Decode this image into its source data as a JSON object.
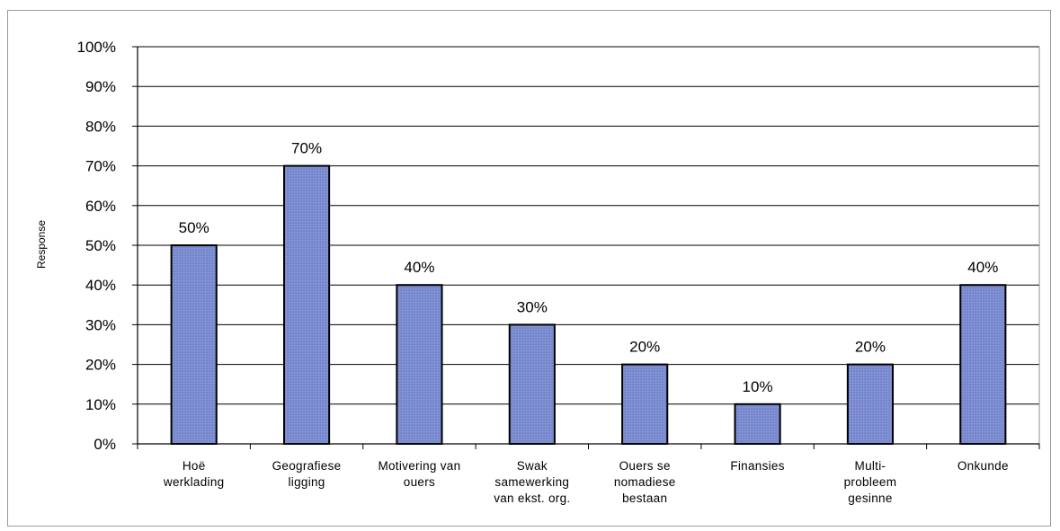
{
  "chart_data": {
    "type": "bar",
    "categories": [
      [
        "Hoë",
        "werklading"
      ],
      [
        "Geografiese",
        "ligging"
      ],
      [
        "Motivering van",
        "ouers"
      ],
      [
        "Swak",
        "samewerking",
        "van ekst. org."
      ],
      [
        "Ouers se",
        "nomadiese",
        "bestaan"
      ],
      [
        "Finansies"
      ],
      [
        "Multi-",
        "probleem",
        "gesinne"
      ],
      [
        "Onkunde"
      ]
    ],
    "values": [
      50,
      70,
      40,
      30,
      20,
      10,
      20,
      40
    ],
    "data_labels": [
      "50%",
      "70%",
      "40%",
      "30%",
      "20%",
      "10%",
      "20%",
      "40%"
    ],
    "ylabel": "Response",
    "xlabel": "",
    "title": "",
    "ylim": [
      0,
      100
    ],
    "yticks": [
      "0%",
      "10%",
      "20%",
      "30%",
      "40%",
      "50%",
      "60%",
      "70%",
      "80%",
      "90%",
      "100%"
    ],
    "grid": true,
    "legend": "none",
    "colors": {
      "bar_fill": "#7f8fd0",
      "bar_stroke": "#000000",
      "grid": "#000000"
    }
  }
}
